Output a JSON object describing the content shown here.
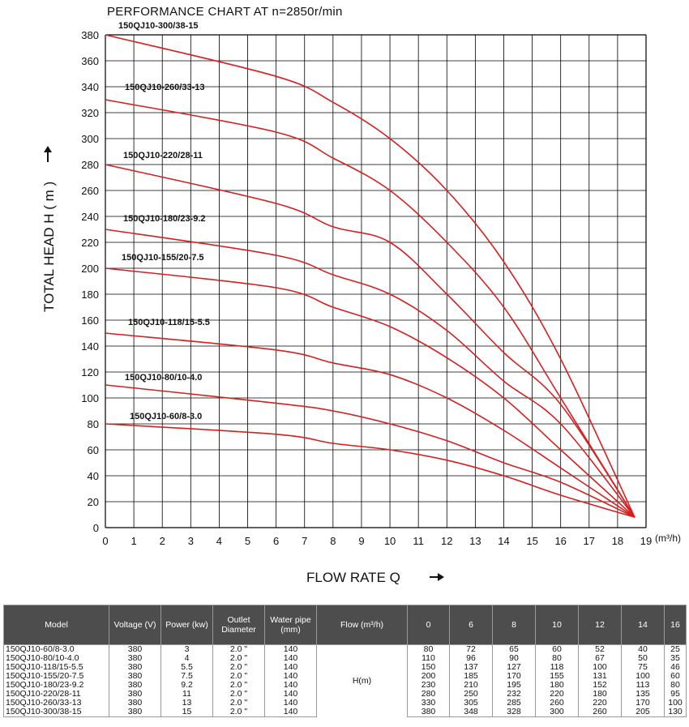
{
  "chart_data": {
    "type": "line",
    "title": "PERFORMANCE CHART AT  n=2850r/min",
    "xlabel": "FLOW RATE Q",
    "xunit": "(m³/h)",
    "ylabel": "TOTAL HEAD  H ( m )",
    "xlim": [
      0,
      19
    ],
    "ylim": [
      0,
      380
    ],
    "xticks": [
      0,
      1,
      2,
      3,
      4,
      5,
      6,
      7,
      8,
      9,
      10,
      11,
      12,
      13,
      14,
      15,
      16,
      17,
      18,
      19
    ],
    "yticks": [
      0,
      20,
      40,
      60,
      80,
      100,
      120,
      140,
      160,
      180,
      200,
      220,
      240,
      260,
      280,
      300,
      320,
      340,
      360,
      380
    ],
    "grid": true,
    "line_color": "#d42020",
    "series": [
      {
        "name": "150QJ10-60/8-3.0",
        "x": [
          0,
          6,
          8,
          10,
          12,
          14,
          16,
          18.6
        ],
        "y": [
          80,
          72,
          65,
          60,
          52,
          40,
          25,
          8
        ]
      },
      {
        "name": "150QJ10-80/10-4.0",
        "x": [
          0,
          6,
          8,
          10,
          12,
          14,
          16,
          18.6
        ],
        "y": [
          110,
          96,
          90,
          80,
          67,
          50,
          35,
          8
        ]
      },
      {
        "name": "150QJ10-118/15-5.5",
        "x": [
          0,
          6,
          8,
          10,
          12,
          14,
          16,
          18.6
        ],
        "y": [
          150,
          137,
          127,
          118,
          100,
          75,
          46,
          8
        ]
      },
      {
        "name": "150QJ10-155/20-7.5",
        "x": [
          0,
          6,
          8,
          10,
          12,
          14,
          16,
          18.6
        ],
        "y": [
          200,
          185,
          170,
          155,
          131,
          100,
          60,
          8
        ]
      },
      {
        "name": "150QJ10-180/23-9.2",
        "x": [
          0,
          6,
          8,
          10,
          12,
          14,
          16,
          18.6
        ],
        "y": [
          230,
          210,
          195,
          180,
          152,
          113,
          80,
          8
        ]
      },
      {
        "name": "150QJ10-220/28-11",
        "x": [
          0,
          6,
          8,
          10,
          12,
          14,
          16,
          18.6
        ],
        "y": [
          280,
          250,
          232,
          220,
          180,
          135,
          95,
          8
        ]
      },
      {
        "name": "150QJ10-260/33-13",
        "x": [
          0,
          6,
          8,
          10,
          12,
          14,
          16,
          18.6
        ],
        "y": [
          330,
          305,
          285,
          260,
          220,
          170,
          100,
          8
        ]
      },
      {
        "name": "150QJ10-300/38-15",
        "x": [
          0,
          6,
          8,
          10,
          12,
          14,
          16,
          18.6
        ],
        "y": [
          380,
          348,
          328,
          300,
          260,
          205,
          130,
          8
        ]
      }
    ]
  },
  "table": {
    "headers": [
      "Model",
      "Voltage (V)",
      "Power (kw)",
      "Outlet Diameter",
      "Water pipe (mm)",
      "Flow (m³/h)",
      "0",
      "6",
      "8",
      "10",
      "12",
      "14",
      "16"
    ],
    "h_label": "H(m)",
    "rows": [
      {
        "model": "150QJ10-60/8-3.0",
        "voltage": "380",
        "power": "3",
        "outlet": "2.0 \"",
        "pipe": "140",
        "h": [
          "80",
          "72",
          "65",
          "60",
          "52",
          "40",
          "25"
        ]
      },
      {
        "model": "150QJ10-80/10-4.0",
        "voltage": "380",
        "power": "4",
        "outlet": "2.0 \"",
        "pipe": "140",
        "h": [
          "110",
          "96",
          "90",
          "80",
          "67",
          "50",
          "35"
        ]
      },
      {
        "model": "150QJ10-118/15-5.5",
        "voltage": "380",
        "power": "5.5",
        "outlet": "2.0 \"",
        "pipe": "140",
        "h": [
          "150",
          "137",
          "127",
          "118",
          "100",
          "75",
          "46"
        ]
      },
      {
        "model": "150QJ10-155/20-7.5",
        "voltage": "380",
        "power": "7.5",
        "outlet": "2.0 \"",
        "pipe": "140",
        "h": [
          "200",
          "185",
          "170",
          "155",
          "131",
          "100",
          "60"
        ]
      },
      {
        "model": "150QJ10-180/23-9.2",
        "voltage": "380",
        "power": "9.2",
        "outlet": "2.0 \"",
        "pipe": "140",
        "h": [
          "230",
          "210",
          "195",
          "180",
          "152",
          "113",
          "80"
        ]
      },
      {
        "model": "150QJ10-220/28-11",
        "voltage": "380",
        "power": "11",
        "outlet": "2.0 \"",
        "pipe": "140",
        "h": [
          "280",
          "250",
          "232",
          "220",
          "180",
          "135",
          "95"
        ]
      },
      {
        "model": "150QJ10-260/33-13",
        "voltage": "380",
        "power": "13",
        "outlet": "2.0 \"",
        "pipe": "140",
        "h": [
          "330",
          "305",
          "285",
          "260",
          "220",
          "170",
          "100"
        ]
      },
      {
        "model": "150QJ10-300/38-15",
        "voltage": "380",
        "power": "15",
        "outlet": "2.0 \"",
        "pipe": "140",
        "h": [
          "380",
          "348",
          "328",
          "300",
          "260",
          "205",
          "130"
        ]
      }
    ]
  }
}
